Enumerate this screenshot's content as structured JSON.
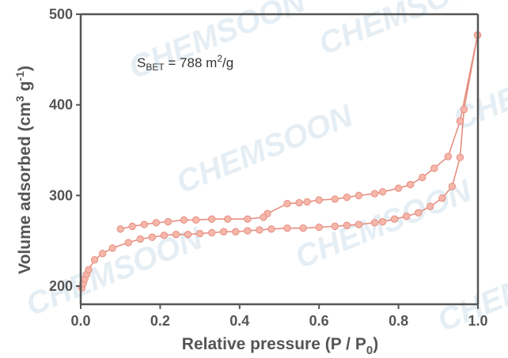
{
  "colors": {
    "series": "#e58f80",
    "marker_fill": "#f6b6aa",
    "axis": "#555555",
    "watermark": "#e3edf3"
  },
  "watermark_text": "CHEMSOON",
  "chart_data": {
    "type": "line",
    "xlabel_main": "Relative pressure (P / P",
    "xlabel_sub": "0",
    "xlabel_end": ")",
    "ylabel_main": "Volume adsorbed (cm",
    "ylabel_sup": "3",
    "ylabel_mid": " g",
    "ylabel_sup2": "-1",
    "ylabel_end": ")",
    "xlim": [
      0.0,
      1.0
    ],
    "ylim": [
      180,
      500
    ],
    "xticks": [
      0.0,
      0.2,
      0.4,
      0.6,
      0.8,
      1.0
    ],
    "xtick_labels": [
      "0.0",
      "0.2",
      "0.4",
      "0.6",
      "0.8",
      "1.0"
    ],
    "yticks": [
      200,
      300,
      400,
      500
    ],
    "ytick_labels": [
      "200",
      "300",
      "400",
      "500"
    ],
    "annotation": {
      "prefix": "S",
      "sub": "BET",
      "mid": " = 788 m",
      "sup": "2",
      "suffix": "/g"
    },
    "series": [
      {
        "values_x": [
          0.003,
          0.006,
          0.01,
          0.015,
          0.02,
          0.035,
          0.055,
          0.08,
          0.12,
          0.15,
          0.18,
          0.21,
          0.24,
          0.27,
          0.3,
          0.33,
          0.36,
          0.39,
          0.42,
          0.45,
          0.48,
          0.52,
          0.56,
          0.6,
          0.64,
          0.67,
          0.7,
          0.74,
          0.76,
          0.79,
          0.82,
          0.85,
          0.88,
          0.91,
          0.935,
          0.955,
          0.965,
          0.999
        ],
        "values_y": [
          198,
          203,
          208,
          213,
          218,
          229,
          236,
          242,
          248,
          252,
          254,
          256,
          257,
          257,
          258,
          259,
          260,
          260,
          261,
          262,
          263,
          264,
          264,
          265,
          266,
          267,
          268,
          270,
          271,
          274,
          277,
          281,
          288,
          297,
          310,
          342,
          395,
          477
        ]
      },
      {
        "values_x": [
          0.999,
          0.955,
          0.925,
          0.89,
          0.86,
          0.83,
          0.8,
          0.76,
          0.74,
          0.7,
          0.67,
          0.64,
          0.6,
          0.57,
          0.55,
          0.52,
          0.47,
          0.46,
          0.42,
          0.37,
          0.33,
          0.29,
          0.26,
          0.22,
          0.19,
          0.16,
          0.13,
          0.1
        ],
        "values_y": [
          477,
          382,
          343,
          330,
          320,
          312,
          308,
          304,
          302,
          300,
          298,
          296,
          295,
          293,
          292,
          291,
          280,
          276,
          274,
          274,
          274,
          273,
          273,
          271,
          270,
          268,
          266,
          263
        ]
      }
    ]
  }
}
